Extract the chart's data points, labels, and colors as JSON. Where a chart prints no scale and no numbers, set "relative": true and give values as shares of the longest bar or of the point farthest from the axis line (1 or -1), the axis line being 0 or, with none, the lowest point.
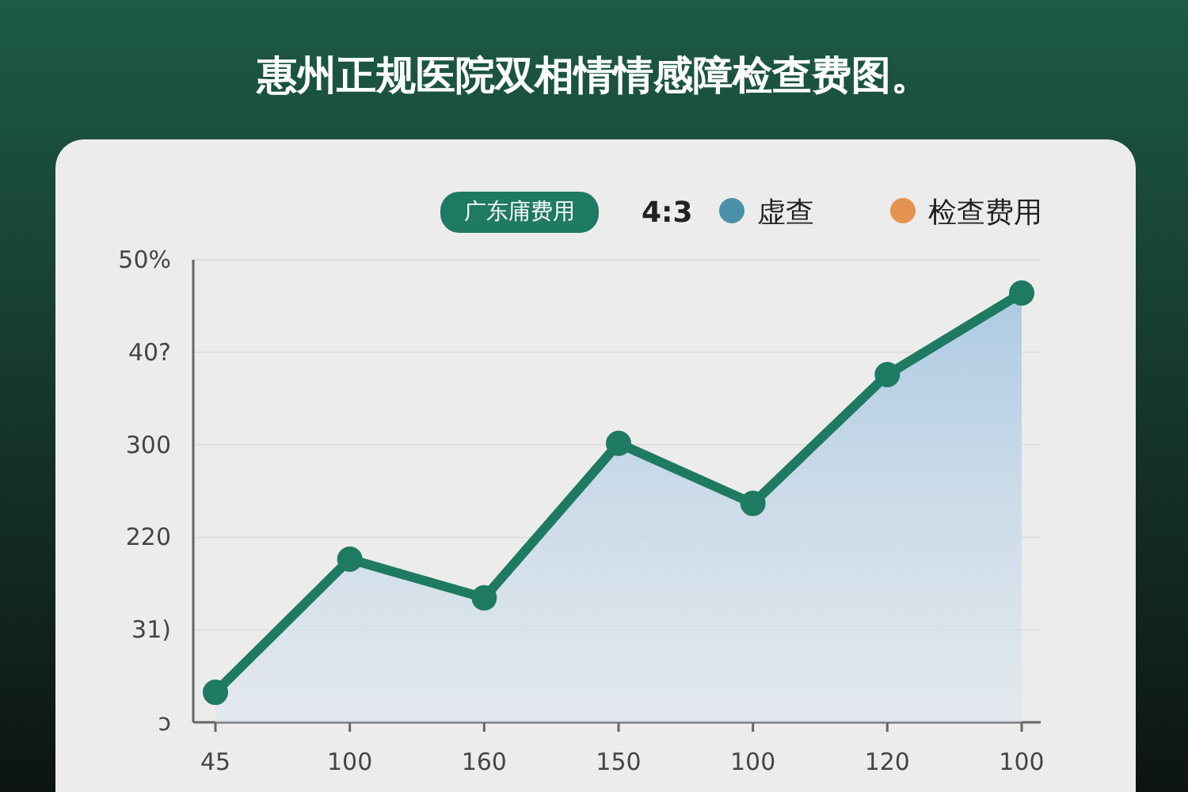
{
  "chart_data": {
    "type": "area",
    "title": "惠州正规医院双相情情感障检查费图。",
    "categories": [
      "45",
      "100",
      "160",
      "150",
      "100",
      "120",
      "100"
    ],
    "relative": true,
    "series": [
      {
        "name": "广东庯费用",
        "color": "#1f7a62",
        "values": [
          0.07,
          0.38,
          0.29,
          0.65,
          0.51,
          0.81,
          1
        ]
      }
    ],
    "grid": "y",
    "marker": "circle",
    "legend": "top",
    "annotations": [
      "ↄ",
      "31)",
      "220",
      "300",
      "40?",
      "50%",
      "4:3",
      "虚查",
      "检查费用"
    ]
  }
}
